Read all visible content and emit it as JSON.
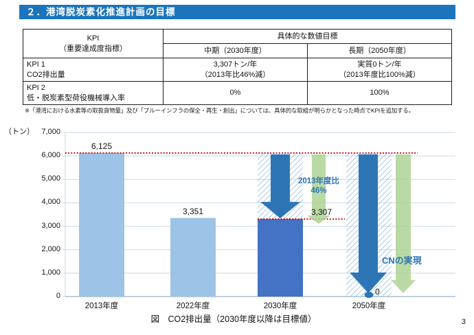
{
  "page": {
    "title": "２．港湾脱炭素化推進計画の目標",
    "title_bar_color": "#1B75BD",
    "page_number": "3"
  },
  "kpi_table": {
    "header": {
      "kpi_line1": "KPI",
      "kpi_line2": "（重要達成度指標）",
      "targets": "具体的な数値目標",
      "mid_term": "中期（2030年度）",
      "long_term": "長期（2050年度）"
    },
    "rows": [
      {
        "name_line1": "KPI 1",
        "name_line2": "CO2排出量",
        "mid_line1": "3,307トン/年",
        "mid_line2": "（2013年比46%減）",
        "long_line1": "実質0トン/年",
        "long_line2": "（2013年度比100%減）"
      },
      {
        "name_line1": "KPI 2",
        "name_line2": "低・脱炭素型荷役機械導入率",
        "mid_line1": "0%",
        "mid_line2": "",
        "long_line1": "100%",
        "long_line2": ""
      }
    ],
    "footnote": "※「港湾における水素等の取扱貨物量」及び「ブルーインフラの保全・再生・創出」については、具体的な取組が明らかとなった時点でKPIを追加する。"
  },
  "chart_data": {
    "type": "bar",
    "title": "図　CO2排出量（2030年度以降は目標値）",
    "unit_label": "（トン）",
    "categories": [
      "2013年度",
      "2022年度",
      "2030年度",
      "2050年度"
    ],
    "values": [
      6125,
      3351,
      3307,
      0
    ],
    "value_labels": [
      "6,125",
      "3,351",
      "3,307",
      "0"
    ],
    "bar_styles": [
      "actual-light",
      "actual-light",
      "target-dark-with-reduction-hatch",
      "target-zero-full-hatch"
    ],
    "baseline_value": 6125,
    "ylim": [
      0,
      7000
    ],
    "ytick_step": 1000,
    "yticks": [
      "7,000",
      "6,000",
      "5,000",
      "4,000",
      "3,000",
      "2,000",
      "1,000",
      "0"
    ],
    "grid": true,
    "annotations": {
      "reduction_2030_line1": "2013年度比",
      "reduction_2030_line2": "46%",
      "reduction_2050": "CNの実現"
    },
    "colors": {
      "bar_light": "#9DC3E6",
      "bar_dark": "#4472C4",
      "arrow_blue": "#2E75B6",
      "arrow_green": "#A9D18E",
      "red_dotted": "#C00000",
      "hatch_stripe": "#9DC3E6",
      "gridline": "#CBD8E4",
      "axis_line": "#A9BFD2",
      "annotation_text": "#2E75B6"
    }
  }
}
